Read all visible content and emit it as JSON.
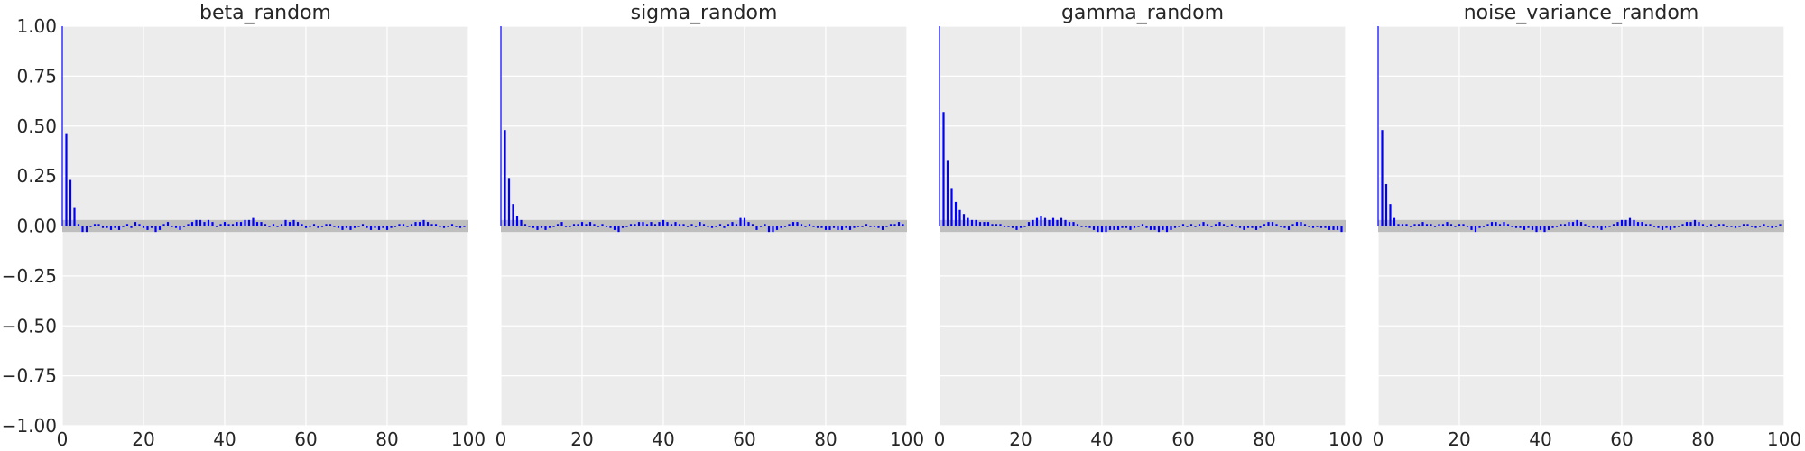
{
  "chart_data": [
    {
      "type": "bar",
      "title": "beta_random",
      "xlabel": "",
      "ylabel": "",
      "xlim": [
        0,
        100
      ],
      "ylim": [
        -1.0,
        1.0
      ],
      "xticks": [
        "0",
        "20",
        "40",
        "60",
        "80",
        "100"
      ],
      "yticks": [
        "1.00",
        "0.75",
        "0.50",
        "0.25",
        "0.00",
        "−0.25",
        "−0.50",
        "−0.75",
        "−1.00"
      ],
      "grid": true,
      "confidence_band": [
        -0.03,
        0.03
      ],
      "lags": [
        0,
        1,
        2,
        3,
        4,
        5,
        6,
        7,
        8,
        9,
        10,
        11,
        12,
        13,
        14,
        15,
        16,
        17,
        18,
        19,
        20,
        21,
        22,
        23,
        24,
        25,
        26,
        27,
        28,
        29,
        30,
        31,
        32,
        33,
        34,
        35,
        36,
        37,
        38,
        39,
        40,
        41,
        42,
        43,
        44,
        45,
        46,
        47,
        48,
        49,
        50,
        51,
        52,
        53,
        54,
        55,
        56,
        57,
        58,
        59,
        60,
        61,
        62,
        63,
        64,
        65,
        66,
        67,
        68,
        69,
        70,
        71,
        72,
        73,
        74,
        75,
        76,
        77,
        78,
        79,
        80,
        81,
        82,
        83,
        84,
        85,
        86,
        87,
        88,
        89,
        90,
        91,
        92,
        93,
        94,
        95,
        96,
        97,
        98,
        99
      ],
      "values": [
        1.0,
        0.46,
        0.23,
        0.09,
        0.01,
        -0.03,
        -0.03,
        0.0,
        0.01,
        0.01,
        -0.01,
        -0.01,
        -0.02,
        -0.01,
        -0.02,
        0.0,
        0.01,
        -0.01,
        0.02,
        0.01,
        -0.01,
        -0.02,
        -0.01,
        -0.03,
        -0.02,
        0.01,
        0.02,
        0.0,
        -0.01,
        -0.02,
        0.0,
        0.01,
        0.02,
        0.03,
        0.03,
        0.02,
        0.03,
        0.02,
        0.0,
        0.01,
        0.02,
        0.01,
        0.01,
        0.02,
        0.02,
        0.03,
        0.03,
        0.04,
        0.02,
        0.02,
        0.01,
        0.0,
        0.01,
        0.0,
        0.01,
        0.03,
        0.02,
        0.03,
        0.02,
        0.01,
        -0.01,
        0.0,
        0.01,
        -0.01,
        0.0,
        0.01,
        0.01,
        0.0,
        -0.01,
        -0.02,
        -0.01,
        -0.02,
        -0.01,
        0.0,
        0.01,
        -0.01,
        -0.02,
        -0.01,
        -0.02,
        -0.01,
        -0.02,
        -0.01,
        0.0,
        0.01,
        0.01,
        0.0,
        0.01,
        0.02,
        0.02,
        0.03,
        0.02,
        0.01,
        0.01,
        0.0,
        -0.01,
        0.0,
        0.01,
        0.0,
        -0.01,
        0.0
      ]
    },
    {
      "type": "bar",
      "title": "sigma_random",
      "xlabel": "",
      "ylabel": "",
      "xlim": [
        0,
        100
      ],
      "ylim": [
        -1.0,
        1.0
      ],
      "xticks": [
        "0",
        "20",
        "40",
        "60",
        "80",
        "100"
      ],
      "grid": true,
      "confidence_band": [
        -0.03,
        0.03
      ],
      "lags": [
        0,
        1,
        2,
        3,
        4,
        5,
        6,
        7,
        8,
        9,
        10,
        11,
        12,
        13,
        14,
        15,
        16,
        17,
        18,
        19,
        20,
        21,
        22,
        23,
        24,
        25,
        26,
        27,
        28,
        29,
        30,
        31,
        32,
        33,
        34,
        35,
        36,
        37,
        38,
        39,
        40,
        41,
        42,
        43,
        44,
        45,
        46,
        47,
        48,
        49,
        50,
        51,
        52,
        53,
        54,
        55,
        56,
        57,
        58,
        59,
        60,
        61,
        62,
        63,
        64,
        65,
        66,
        67,
        68,
        69,
        70,
        71,
        72,
        73,
        74,
        75,
        76,
        77,
        78,
        79,
        80,
        81,
        82,
        83,
        84,
        85,
        86,
        87,
        88,
        89,
        90,
        91,
        92,
        93,
        94,
        95,
        96,
        97,
        98,
        99
      ],
      "values": [
        1.0,
        0.48,
        0.24,
        0.11,
        0.05,
        0.03,
        0.01,
        0.0,
        -0.01,
        -0.02,
        -0.01,
        -0.02,
        -0.01,
        0.0,
        0.01,
        0.02,
        0.0,
        0.0,
        0.01,
        0.01,
        0.02,
        0.01,
        0.02,
        0.01,
        0.0,
        0.01,
        0.0,
        -0.01,
        -0.02,
        -0.03,
        -0.01,
        0.0,
        0.01,
        0.01,
        0.02,
        0.02,
        0.01,
        0.02,
        0.01,
        0.02,
        0.03,
        0.02,
        0.01,
        0.02,
        0.01,
        0.01,
        0.0,
        0.01,
        0.0,
        0.02,
        0.01,
        0.0,
        -0.01,
        0.0,
        0.01,
        -0.01,
        0.01,
        0.02,
        0.01,
        0.04,
        0.04,
        0.02,
        0.01,
        -0.02,
        0.0,
        0.01,
        -0.03,
        -0.03,
        -0.02,
        -0.01,
        0.0,
        0.01,
        0.02,
        0.02,
        0.01,
        0.0,
        0.01,
        0.0,
        -0.01,
        -0.01,
        -0.02,
        -0.02,
        -0.01,
        -0.02,
        -0.02,
        -0.01,
        -0.02,
        -0.01,
        0.0,
        0.0,
        0.01,
        0.0,
        0.0,
        -0.01,
        -0.02,
        0.0,
        0.01,
        0.01,
        0.02,
        0.01
      ]
    },
    {
      "type": "bar",
      "title": "gamma_random",
      "xlabel": "",
      "ylabel": "",
      "xlim": [
        0,
        100
      ],
      "ylim": [
        -1.0,
        1.0
      ],
      "xticks": [
        "0",
        "20",
        "40",
        "60",
        "80",
        "100"
      ],
      "grid": true,
      "confidence_band": [
        -0.03,
        0.03
      ],
      "lags": [
        0,
        1,
        2,
        3,
        4,
        5,
        6,
        7,
        8,
        9,
        10,
        11,
        12,
        13,
        14,
        15,
        16,
        17,
        18,
        19,
        20,
        21,
        22,
        23,
        24,
        25,
        26,
        27,
        28,
        29,
        30,
        31,
        32,
        33,
        34,
        35,
        36,
        37,
        38,
        39,
        40,
        41,
        42,
        43,
        44,
        45,
        46,
        47,
        48,
        49,
        50,
        51,
        52,
        53,
        54,
        55,
        56,
        57,
        58,
        59,
        60,
        61,
        62,
        63,
        64,
        65,
        66,
        67,
        68,
        69,
        70,
        71,
        72,
        73,
        74,
        75,
        76,
        77,
        78,
        79,
        80,
        81,
        82,
        83,
        84,
        85,
        86,
        87,
        88,
        89,
        90,
        91,
        92,
        93,
        94,
        95,
        96,
        97,
        98,
        99
      ],
      "values": [
        1.0,
        0.57,
        0.33,
        0.19,
        0.12,
        0.08,
        0.06,
        0.04,
        0.03,
        0.03,
        0.02,
        0.02,
        0.02,
        0.01,
        0.01,
        0.01,
        0.0,
        0.0,
        -0.01,
        -0.02,
        -0.01,
        0.0,
        0.02,
        0.03,
        0.04,
        0.05,
        0.04,
        0.03,
        0.04,
        0.03,
        0.04,
        0.03,
        0.02,
        0.02,
        0.01,
        0.0,
        0.0,
        -0.01,
        -0.02,
        -0.03,
        -0.03,
        -0.03,
        -0.02,
        -0.02,
        -0.02,
        -0.01,
        -0.01,
        -0.02,
        -0.01,
        0.0,
        0.01,
        -0.01,
        -0.02,
        -0.02,
        -0.03,
        -0.02,
        -0.03,
        -0.02,
        -0.01,
        0.0,
        0.01,
        0.0,
        0.01,
        0.0,
        0.01,
        0.02,
        0.01,
        0.0,
        0.01,
        0.02,
        0.01,
        0.0,
        0.01,
        0.0,
        -0.01,
        -0.02,
        -0.01,
        -0.01,
        -0.02,
        -0.01,
        0.01,
        0.02,
        0.02,
        0.01,
        0.0,
        -0.01,
        -0.02,
        0.01,
        0.02,
        0.02,
        0.01,
        0.0,
        -0.01,
        0.0,
        -0.01,
        -0.01,
        -0.02,
        -0.02,
        -0.02,
        -0.03
      ]
    },
    {
      "type": "bar",
      "title": "noise_variance_random",
      "xlabel": "",
      "ylabel": "",
      "xlim": [
        0,
        100
      ],
      "ylim": [
        -1.0,
        1.0
      ],
      "xticks": [
        "0",
        "20",
        "40",
        "60",
        "80",
        "100"
      ],
      "grid": true,
      "confidence_band": [
        -0.03,
        0.03
      ],
      "lags": [
        0,
        1,
        2,
        3,
        4,
        5,
        6,
        7,
        8,
        9,
        10,
        11,
        12,
        13,
        14,
        15,
        16,
        17,
        18,
        19,
        20,
        21,
        22,
        23,
        24,
        25,
        26,
        27,
        28,
        29,
        30,
        31,
        32,
        33,
        34,
        35,
        36,
        37,
        38,
        39,
        40,
        41,
        42,
        43,
        44,
        45,
        46,
        47,
        48,
        49,
        50,
        51,
        52,
        53,
        54,
        55,
        56,
        57,
        58,
        59,
        60,
        61,
        62,
        63,
        64,
        65,
        66,
        67,
        68,
        69,
        70,
        71,
        72,
        73,
        74,
        75,
        76,
        77,
        78,
        79,
        80,
        81,
        82,
        83,
        84,
        85,
        86,
        87,
        88,
        89,
        90,
        91,
        92,
        93,
        94,
        95,
        96,
        97,
        98,
        99
      ],
      "values": [
        1.0,
        0.48,
        0.21,
        0.11,
        0.04,
        0.01,
        0.01,
        0.01,
        0.0,
        0.01,
        0.01,
        0.02,
        0.01,
        0.01,
        0.0,
        0.01,
        0.01,
        0.02,
        0.01,
        0.0,
        0.01,
        0.01,
        0.0,
        -0.02,
        -0.03,
        -0.01,
        0.0,
        0.01,
        0.02,
        0.02,
        0.01,
        0.02,
        0.01,
        0.0,
        -0.01,
        -0.01,
        -0.02,
        -0.01,
        -0.02,
        -0.03,
        -0.02,
        -0.03,
        -0.02,
        -0.01,
        0.0,
        0.01,
        0.01,
        0.02,
        0.02,
        0.03,
        0.02,
        0.01,
        0.0,
        -0.01,
        -0.01,
        -0.02,
        -0.01,
        0.0,
        0.01,
        0.02,
        0.03,
        0.03,
        0.04,
        0.03,
        0.02,
        0.02,
        0.01,
        0.01,
        0.0,
        -0.01,
        -0.02,
        -0.01,
        -0.02,
        -0.01,
        0.0,
        0.01,
        0.02,
        0.02,
        0.03,
        0.02,
        0.01,
        0.0,
        0.01,
        0.0,
        0.01,
        0.01,
        0.0,
        0.0,
        -0.01,
        0.0,
        0.01,
        0.01,
        0.0,
        -0.01,
        0.0,
        0.01,
        0.0,
        -0.01,
        0.0,
        0.01
      ]
    }
  ],
  "colors": {
    "panel_bg": "#ececec",
    "grid": "#ffffff",
    "bar": "#0000ff",
    "band": "#bebebe",
    "text": "#262626"
  }
}
